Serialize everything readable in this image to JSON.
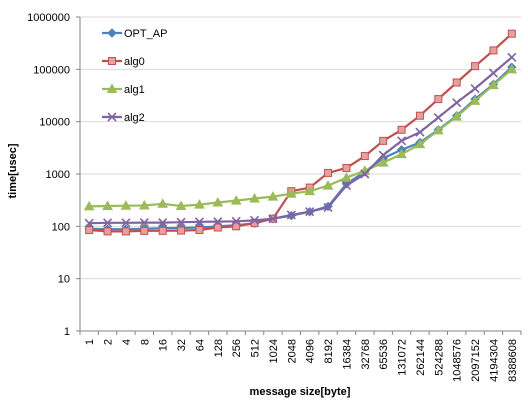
{
  "chart_data": {
    "type": "line",
    "title": "",
    "xlabel": "message size[byte]",
    "ylabel": "time[usec]",
    "yscale": "log",
    "ylim": [
      1,
      1000000
    ],
    "yticks": [
      "1",
      "10",
      "100",
      "1000",
      "10000",
      "100000",
      "1000000"
    ],
    "grid": true,
    "legend": "top-left",
    "categories": [
      "1",
      "2",
      "4",
      "8",
      "16",
      "32",
      "64",
      "128",
      "256",
      "512",
      "1024",
      "2048",
      "4096",
      "8192",
      "16384",
      "32768",
      "65536",
      "131072",
      "262144",
      "524288",
      "1048576",
      "2097152",
      "4194304",
      "8388608"
    ],
    "series": [
      {
        "name": "OPT_AP",
        "color": "#4f81bd",
        "marker": "diamond",
        "values": [
          90,
          88,
          88,
          90,
          92,
          93,
          95,
          100,
          105,
          115,
          140,
          160,
          190,
          240,
          650,
          1100,
          2000,
          2900,
          4000,
          7000,
          13000,
          27000,
          52000,
          110000
        ]
      },
      {
        "name": "alg0",
        "color": "#c0504d",
        "marker": "square",
        "values": [
          85,
          80,
          80,
          82,
          82,
          83,
          85,
          95,
          100,
          115,
          140,
          470,
          550,
          1050,
          1300,
          2200,
          4300,
          7000,
          13000,
          27000,
          56000,
          115000,
          230000,
          480000
        ]
      },
      {
        "name": "alg1",
        "color": "#9bbb59",
        "marker": "triangle",
        "values": [
          240,
          245,
          248,
          250,
          270,
          245,
          260,
          285,
          310,
          340,
          370,
          420,
          470,
          600,
          850,
          1150,
          1650,
          2400,
          3700,
          6800,
          12500,
          25000,
          50000,
          100000
        ]
      },
      {
        "name": "alg2",
        "color": "#8064a2",
        "marker": "cross",
        "values": [
          115,
          117,
          117,
          118,
          118,
          120,
          122,
          123,
          125,
          130,
          140,
          165,
          190,
          230,
          600,
          1000,
          2300,
          4300,
          6300,
          12000,
          23000,
          43000,
          85000,
          170000
        ]
      }
    ]
  }
}
